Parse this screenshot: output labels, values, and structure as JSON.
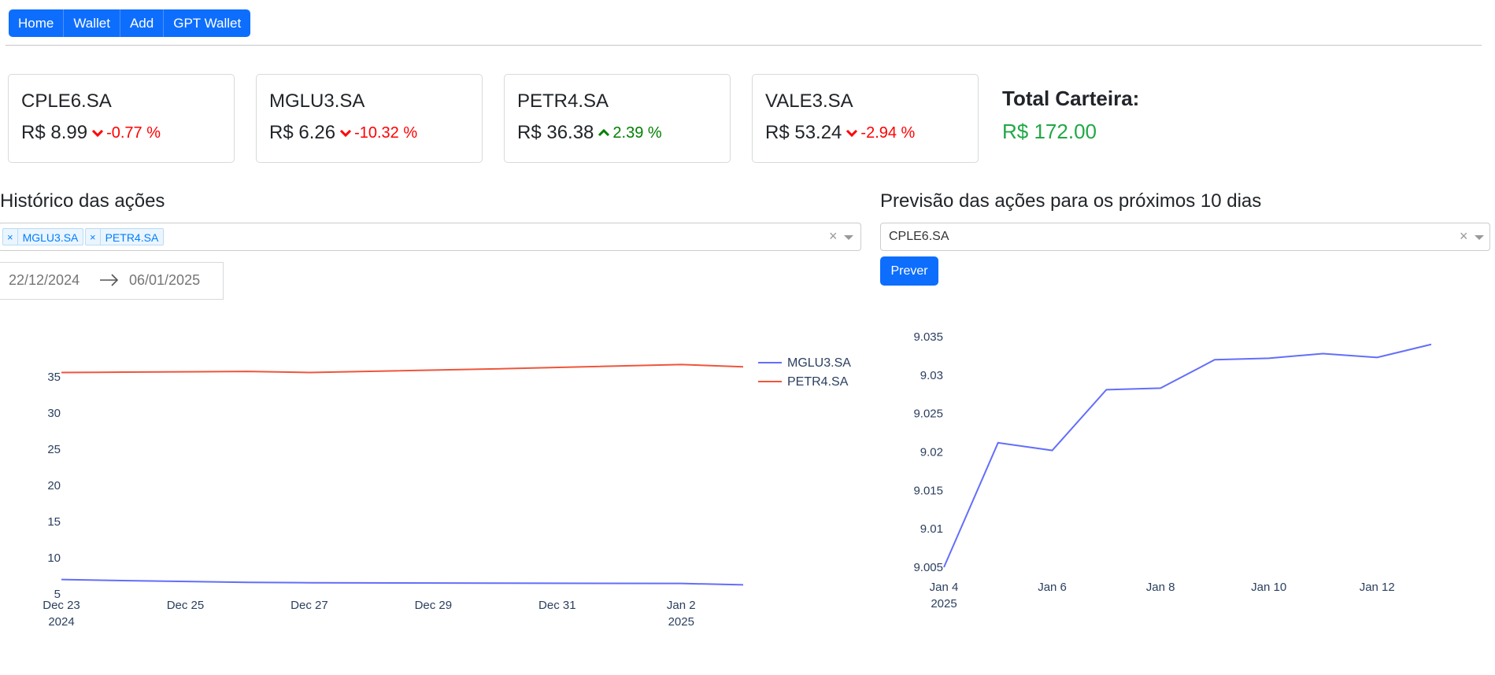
{
  "nav": {
    "items": [
      "Home",
      "Wallet",
      "Add",
      "GPT Wallet"
    ]
  },
  "cards": [
    {
      "ticker": "CPLE6.SA",
      "price": "R$ 8.99",
      "change": "-0.77 %",
      "direction": "down"
    },
    {
      "ticker": "MGLU3.SA",
      "price": "R$ 6.26",
      "change": "-10.32 %",
      "direction": "down"
    },
    {
      "ticker": "PETR4.SA",
      "price": "R$ 36.38",
      "change": "2.39 %",
      "direction": "up"
    },
    {
      "ticker": "VALE3.SA",
      "price": "R$ 53.24",
      "change": "-2.94 %",
      "direction": "down"
    }
  ],
  "total": {
    "label": "Total Carteira:",
    "value": "R$ 172.00"
  },
  "history": {
    "title": "Histórico das ações",
    "selected": [
      "MGLU3.SA",
      "PETR4.SA"
    ],
    "clear": "×",
    "start_date": "22/12/2024",
    "end_date": "06/01/2025"
  },
  "forecast": {
    "title": "Previsão das ações para os próximos 10 dias",
    "selected": "CPLE6.SA",
    "clear": "×",
    "button": "Prever"
  },
  "colors": {
    "primary": "#0d6efd",
    "down": "#ff0000",
    "up": "#008000",
    "total": "#21a846",
    "series_blue": "#636efa",
    "series_red": "#ef553b"
  },
  "chart_data": [
    {
      "type": "line",
      "x": [
        "2024-12-23",
        "2024-12-24",
        "2024-12-26",
        "2024-12-27",
        "2024-12-30",
        "2025-01-02",
        "2025-01-03"
      ],
      "xticks": [
        "Dec 23\n2024",
        "Dec 25",
        "Dec 27",
        "Dec 29",
        "Dec 31",
        "Jan 2\n2025"
      ],
      "series": [
        {
          "name": "MGLU3.SA",
          "values": [
            7.0,
            6.85,
            6.6,
            6.55,
            6.5,
            6.45,
            6.26
          ]
        },
        {
          "name": "PETR4.SA",
          "values": [
            35.6,
            35.65,
            35.75,
            35.6,
            36.1,
            36.7,
            36.38
          ]
        }
      ],
      "yticks": [
        5,
        10,
        15,
        20,
        25,
        30,
        35
      ],
      "ylim": [
        5,
        36.5
      ],
      "legend": "top-right"
    },
    {
      "type": "line",
      "x": [
        "2025-01-04",
        "2025-01-05",
        "2025-01-06",
        "2025-01-07",
        "2025-01-08",
        "2025-01-09",
        "2025-01-10",
        "2025-01-11",
        "2025-01-12",
        "2025-01-13"
      ],
      "xticks": [
        "Jan 4\n2025",
        "Jan 6",
        "Jan 8",
        "Jan 10",
        "Jan 12"
      ],
      "series": [
        {
          "name": "CPLE6.SA",
          "values": [
            9.005,
            9.0212,
            9.0202,
            9.0281,
            9.0283,
            9.032,
            9.0322,
            9.0328,
            9.0323,
            9.034
          ]
        }
      ],
      "yticks": [
        9.005,
        9.01,
        9.015,
        9.02,
        9.025,
        9.03,
        9.035
      ],
      "ylim": [
        9.005,
        9.035
      ],
      "legend": "none"
    }
  ]
}
